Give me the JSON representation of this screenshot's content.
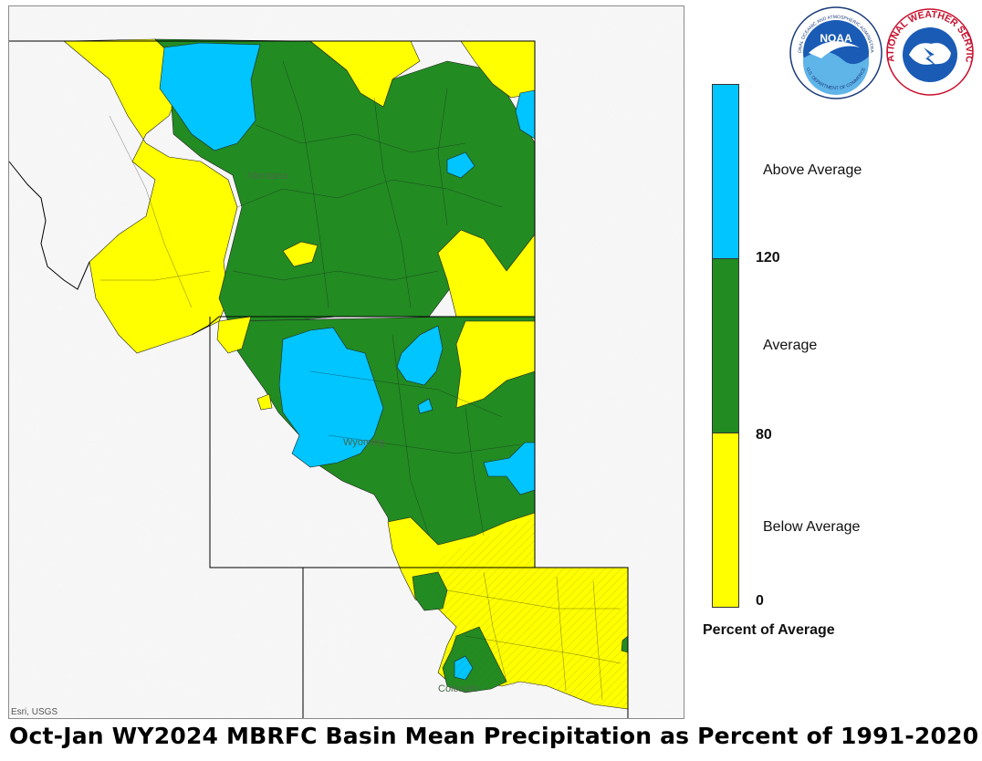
{
  "title": "Oct-Jan WY2024 MBRFC Basin Mean Precipitation as Percent of 1991-2020",
  "map": {
    "attribution": "Esri, USGS",
    "state_labels": [
      "Montana",
      "Wyoming",
      "Colorado"
    ]
  },
  "legend": {
    "title": "Percent of Average",
    "classes": [
      {
        "label": "Above Average",
        "color": "#00C5FF"
      },
      {
        "label": "Average",
        "color": "#228B22"
      },
      {
        "label": "Below Average",
        "color": "#FFFF00"
      }
    ],
    "breaks": [
      "120",
      "80",
      "0"
    ]
  },
  "logos": {
    "noaa_text": "NOAA",
    "noaa_ring_top": "NATIONAL OCEANIC AND ATMOSPHERIC ADMINISTRATION",
    "noaa_ring_bottom": "U.S. DEPARTMENT OF COMMERCE",
    "nws_ring": "NATIONAL WEATHER SERVICE"
  },
  "colors": {
    "above": "#00C5FF",
    "average": "#228B22",
    "below": "#FFFF00",
    "relief": "#f3f3f3"
  }
}
